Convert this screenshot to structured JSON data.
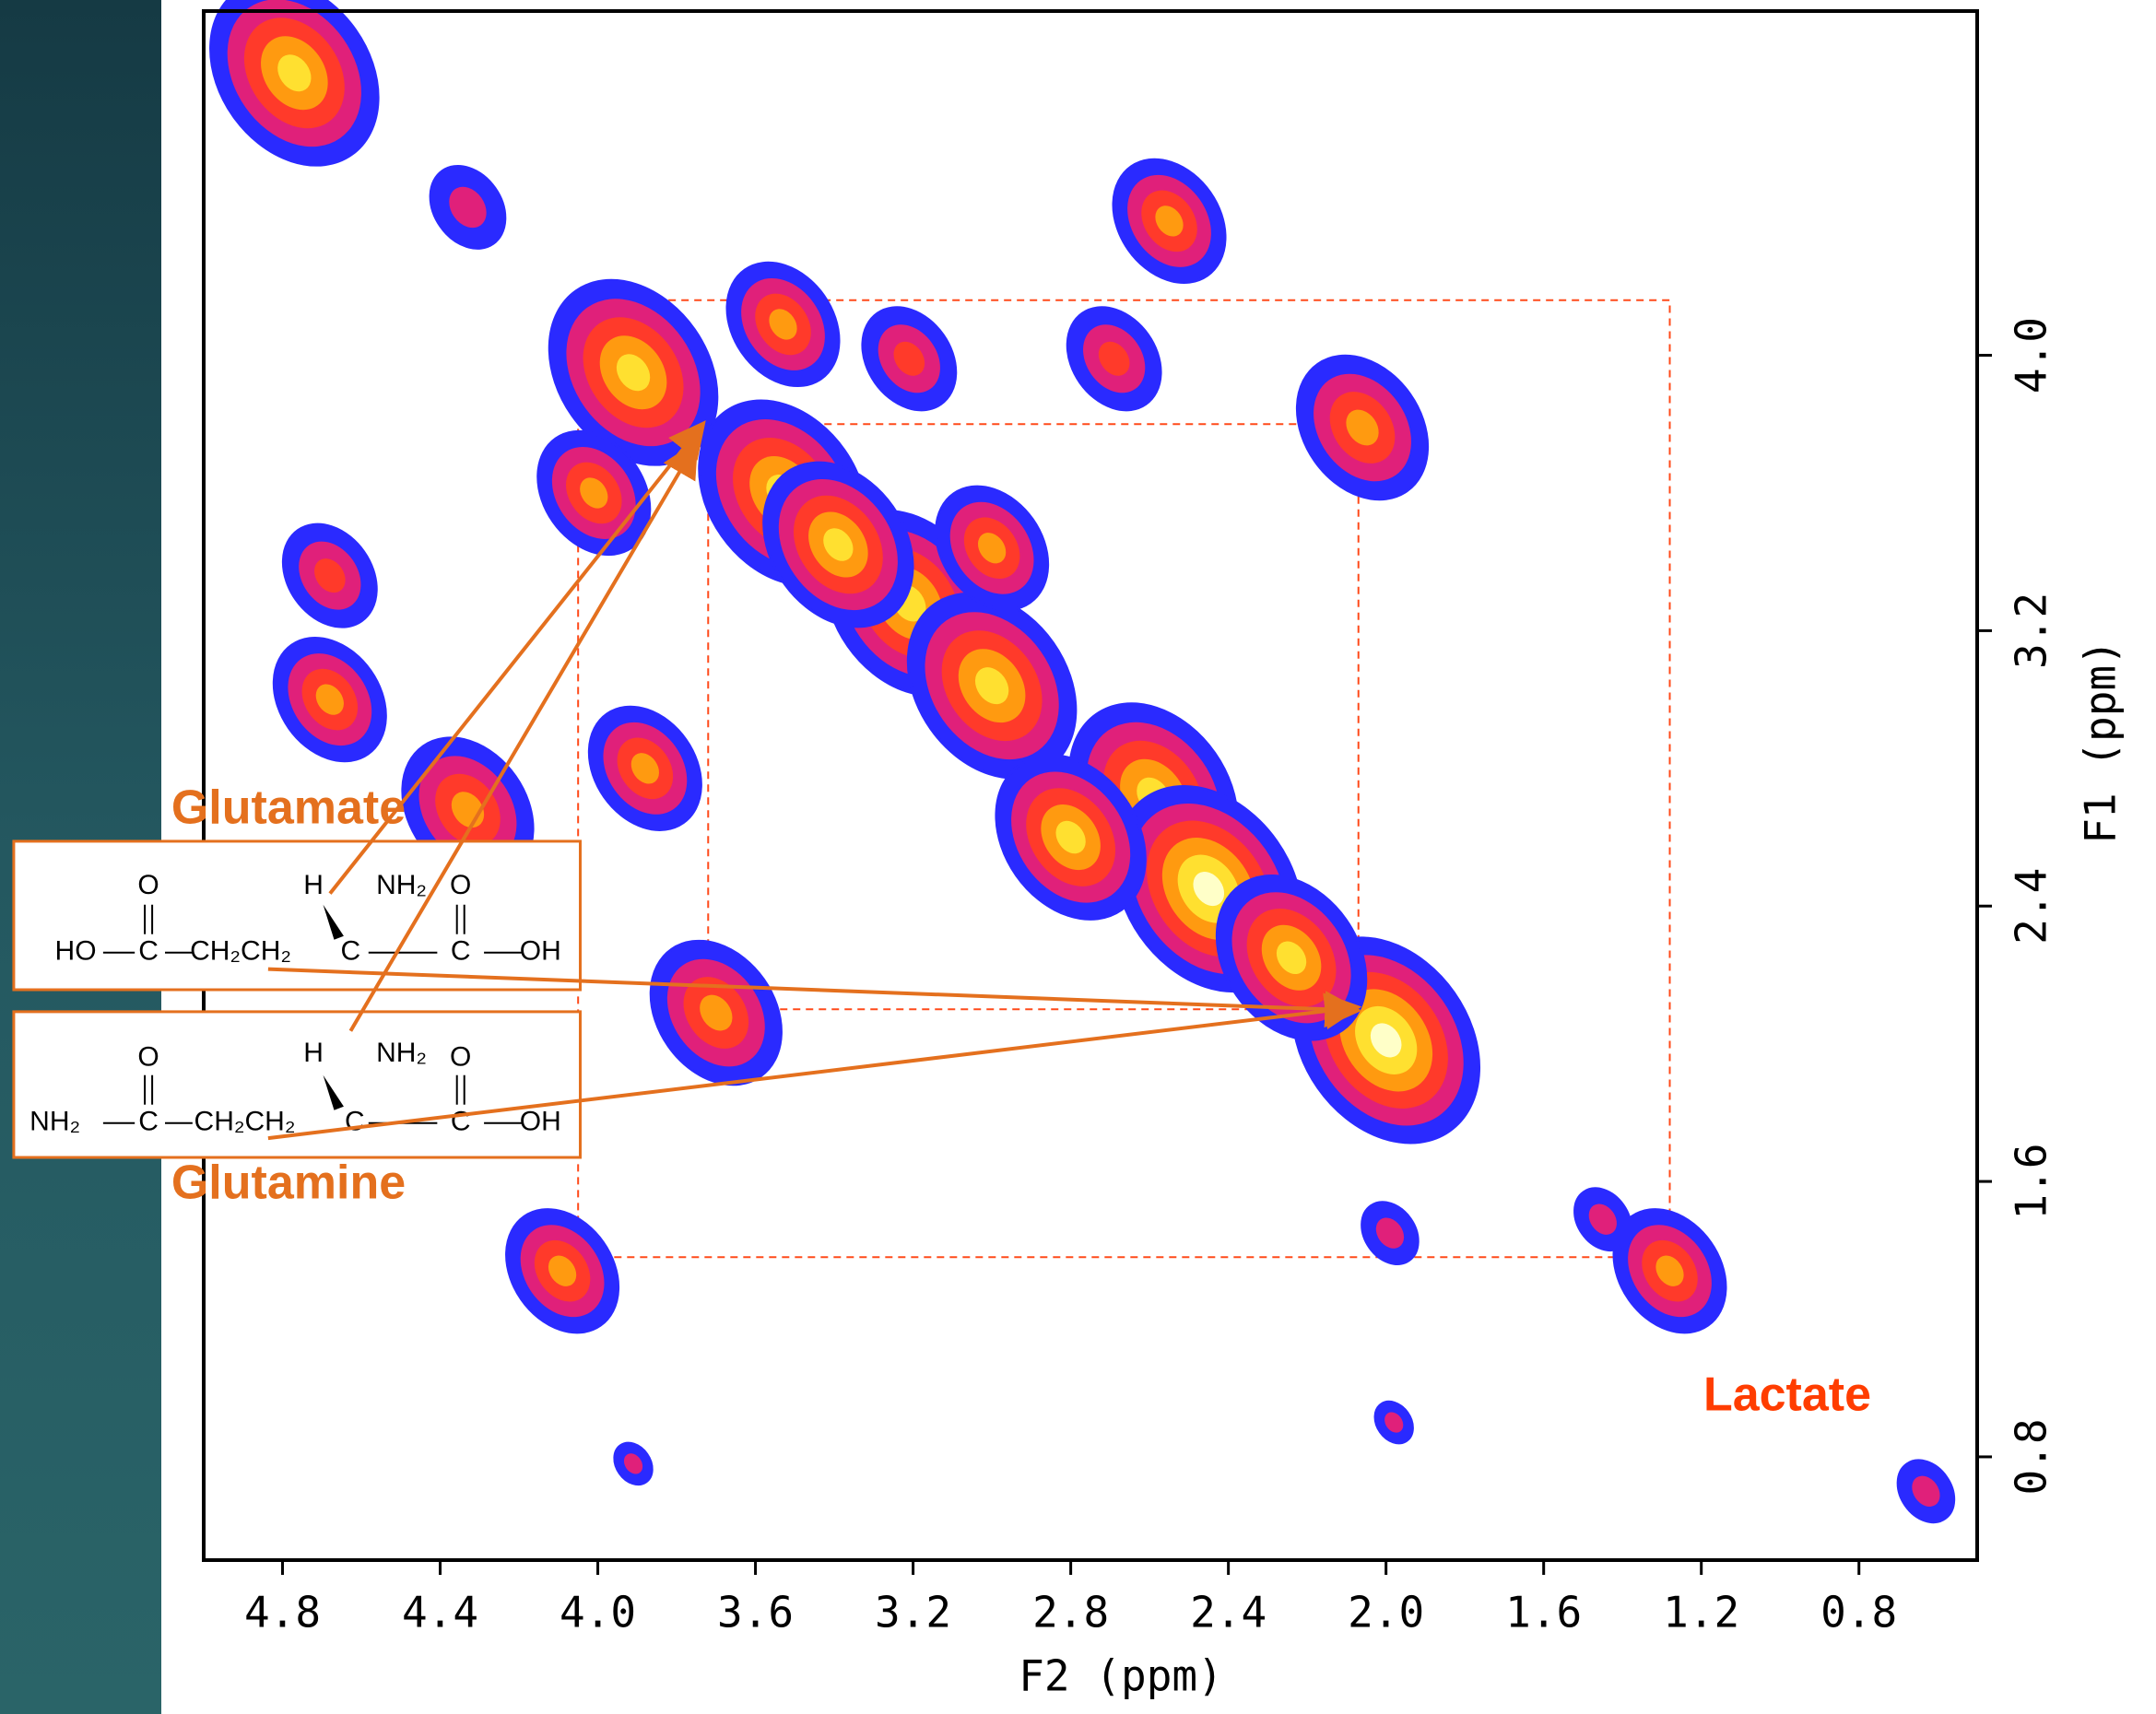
{
  "chart_data": {
    "type": "contour",
    "x_label": "F2 (ppm)",
    "y_label": "F1 (ppm)",
    "xlim": [
      5.0,
      0.5
    ],
    "ylim": [
      0.5,
      5.0
    ],
    "xticks": [
      4.8,
      4.4,
      {
        "value": 4,
        "label": "4.0"
      },
      3.6,
      3.2,
      2.8,
      2.4,
      {
        "value": 2,
        "label": "2.0"
      },
      1.6,
      1.2,
      0.8
    ],
    "yticks": [
      {
        "value": 4,
        "label": "4.0"
      },
      3.2,
      2.4,
      1.6,
      0.8
    ],
    "contour_colors": [
      "#2a2aff",
      "#e0207a",
      "#ff3a2a",
      "#ff9a10",
      "#ffe030",
      "#ffffc8"
    ],
    "peaks": {
      "x": [
        4.77,
        3.91,
        3.53,
        3.21,
        3.0,
        2.59,
        2.45,
        2.0,
        4.01,
        3.7,
        4.09,
        1.28,
        2.06,
        3.53,
        2.55,
        4.68,
        4.68,
        4.33,
        3.88,
        2.69,
        3.21,
        1.45,
        0.63,
        1.98,
        3.91,
        4.33,
        3.0,
        2.24,
        1.99,
        3.39,
        2.8
      ],
      "y": [
        4.82,
        3.95,
        3.6,
        3.28,
        3.04,
        2.72,
        2.45,
        2.01,
        3.6,
        2.09,
        1.34,
        1.34,
        3.79,
        4.09,
        4.39,
        3.36,
        3.0,
        2.68,
        2.8,
        3.99,
        3.99,
        1.49,
        0.7,
        0.9,
        0.78,
        4.43,
        3.44,
        2.25,
        1.45,
        3.45,
        2.6
      ],
      "intensity": [
        9,
        9,
        9,
        9,
        9,
        9,
        10,
        10,
        6,
        7,
        6,
        6,
        7,
        6,
        6,
        5,
        6,
        7,
        6,
        5,
        5,
        3,
        3,
        2,
        2,
        4,
        6,
        8,
        3,
        8,
        8
      ]
    },
    "boxes": [
      {
        "x": [
          4.05,
          1.28
        ],
        "y": [
          4.16,
          1.38
        ]
      },
      {
        "x": [
          3.72,
          2.07
        ],
        "y": [
          3.8,
          2.1
        ]
      }
    ],
    "annotations": [
      "Glutamate",
      "Glutamine",
      "Lactate"
    ],
    "structures": [
      [
        "O",
        "H",
        "NH₂",
        "O",
        "HO",
        "C",
        "CH₂CH₂",
        "C",
        "C",
        "OH"
      ],
      [
        "O",
        "H",
        "NH₂",
        "O",
        "NH₂",
        "C",
        "CH₂CH₂",
        "C",
        "C",
        "OH"
      ]
    ]
  }
}
